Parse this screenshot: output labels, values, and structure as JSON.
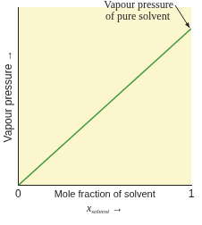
{
  "chart_data": {
    "type": "line",
    "x": [
      0,
      1
    ],
    "values": [
      0,
      0.88
    ],
    "color": "#3a9a3a",
    "xlim": [
      0,
      1
    ],
    "xticks": [
      0,
      1
    ],
    "ylim": [
      0,
      1
    ],
    "xlabel": "Mole fraction of solvent",
    "xsymbol": {
      "text": "x",
      "subscript": "solvent",
      "suffix": "→"
    },
    "ylabel": "Vapour pressure →",
    "annotation": {
      "text": [
        "Vapour pressure",
        "of pure solvent"
      ],
      "x": 1,
      "y": 0.88
    },
    "tick_labels": "x",
    "grid": false
  }
}
